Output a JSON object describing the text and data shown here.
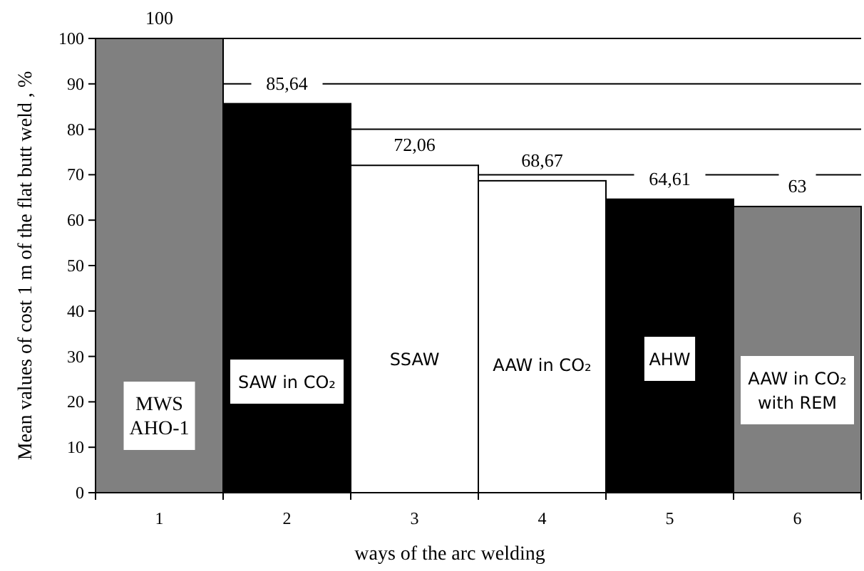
{
  "chart_data": {
    "type": "bar",
    "xlabel": "ways of the arc welding",
    "ylabel": "Mean values of cost 1 m of the flat butt weld , %",
    "categories": [
      "1",
      "2",
      "3",
      "4",
      "5",
      "6"
    ],
    "values": [
      100,
      85.64,
      72.06,
      68.67,
      64.61,
      63
    ],
    "colors": [
      "#808080",
      "#000000",
      "#ffffff",
      "#ffffff",
      "#000000",
      "#808080"
    ],
    "value_labels": [
      "100",
      "85,64",
      "72,06",
      "68,67",
      "64,61",
      "63"
    ],
    "ylim": [
      0,
      100
    ],
    "yticks": [
      0,
      10,
      20,
      30,
      40,
      50,
      60,
      70,
      80,
      90,
      100
    ],
    "grid": "y",
    "annotations": [
      "MWS\nAHO-1",
      "SAW in CO₂",
      "SSAW",
      "AAW in CO₂",
      "AHW",
      "AAW in CO₂\nwith REM"
    ]
  }
}
